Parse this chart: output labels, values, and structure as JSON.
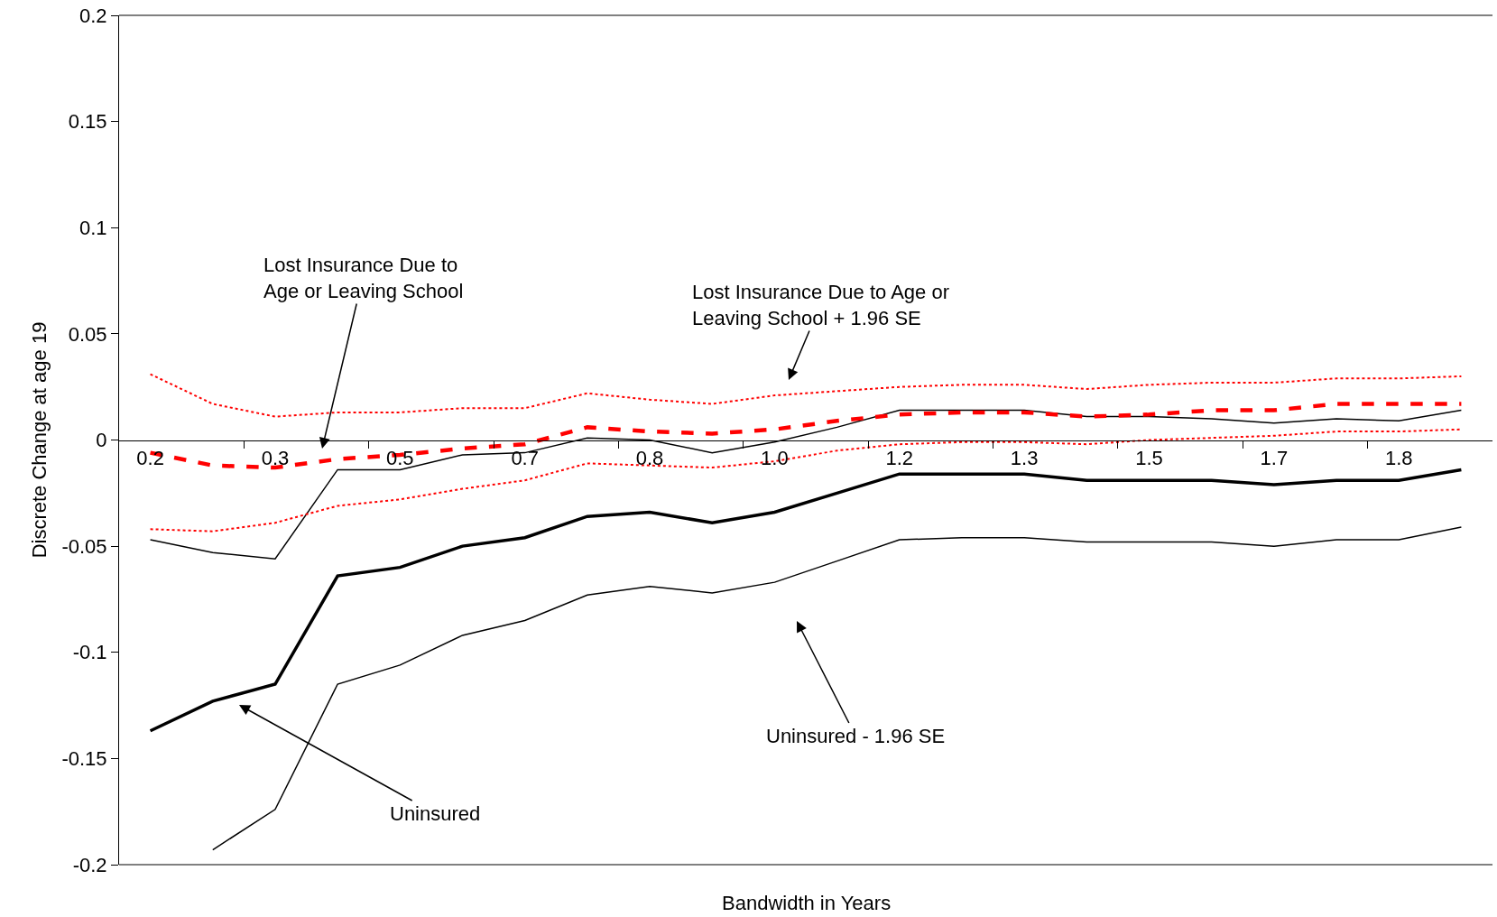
{
  "chart_data": {
    "type": "line",
    "xlabel": "Bandwidth in Years",
    "ylabel": "Discrete Change at age 19",
    "categories": [
      "0.2",
      null,
      "0.3",
      null,
      "0.5",
      null,
      "0.7",
      null,
      "0.8",
      null,
      "1.0",
      null,
      "1.2",
      null,
      "1.3",
      null,
      "1.5",
      null,
      "1.7",
      null,
      "1.8",
      null
    ],
    "series": [
      {
        "color": "#000000",
        "line_style": "solid",
        "values": [
          -0.137,
          -0.123,
          -0.115,
          -0.064,
          -0.06,
          -0.05,
          -0.046,
          -0.036,
          -0.034,
          -0.039,
          -0.034,
          -0.025,
          -0.016,
          -0.016,
          -0.016,
          -0.019,
          -0.019,
          -0.019,
          -0.021,
          -0.019,
          -0.019,
          -0.014
        ]
      },
      {
        "color": "#000000",
        "line_style": "solid",
        "values": [
          -0.047,
          -0.053,
          -0.056,
          -0.014,
          -0.014,
          -0.007,
          -0.006,
          0.001,
          0.0,
          -0.006,
          -0.001,
          0.006,
          0.014,
          0.014,
          0.014,
          0.011,
          0.011,
          0.01,
          0.008,
          0.01,
          0.009,
          0.014
        ]
      },
      {
        "color": "#000000",
        "line_style": "solid",
        "values": [
          null,
          -0.193,
          -0.174,
          -0.115,
          -0.106,
          -0.092,
          -0.085,
          -0.073,
          -0.069,
          -0.072,
          -0.067,
          -0.057,
          -0.047,
          -0.046,
          -0.046,
          -0.048,
          -0.048,
          -0.048,
          -0.05,
          -0.047,
          -0.047,
          -0.041
        ]
      },
      {
        "color": "#ff0000",
        "line_style": "dashed",
        "values": [
          -0.006,
          -0.012,
          -0.013,
          -0.009,
          -0.007,
          -0.004,
          -0.002,
          0.006,
          0.004,
          0.003,
          0.005,
          0.009,
          0.012,
          0.013,
          0.013,
          0.011,
          0.012,
          0.014,
          0.014,
          0.017,
          0.017,
          0.017
        ]
      },
      {
        "color": "#ff0000",
        "line_style": "dotted",
        "values": [
          0.031,
          0.017,
          0.011,
          0.013,
          0.013,
          0.015,
          0.015,
          0.022,
          0.019,
          0.017,
          0.021,
          0.023,
          0.025,
          0.026,
          0.026,
          0.024,
          0.026,
          0.027,
          0.027,
          0.029,
          0.029,
          0.03
        ]
      },
      {
        "color": "#ff0000",
        "line_style": "dotted",
        "values": [
          -0.042,
          -0.043,
          -0.039,
          -0.031,
          -0.028,
          -0.023,
          -0.019,
          -0.011,
          -0.012,
          -0.013,
          -0.01,
          -0.005,
          -0.002,
          -0.001,
          -0.001,
          -0.002,
          0.0,
          0.001,
          0.002,
          0.004,
          0.004,
          0.005
        ]
      }
    ],
    "ylim": [
      -0.2,
      0.2
    ],
    "yticks": [
      -0.2,
      -0.15,
      -0.1,
      -0.05,
      0,
      0.05,
      0.1,
      0.15,
      0.2
    ],
    "grid": false,
    "marker": "none",
    "annotations": [
      "Lost Insurance Due to\nAge or Leaving School",
      "Lost Insurance Due to Age or\nLeaving School + 1.96 SE",
      "Uninsured - 1.96 SE",
      "Uninsured"
    ]
  }
}
